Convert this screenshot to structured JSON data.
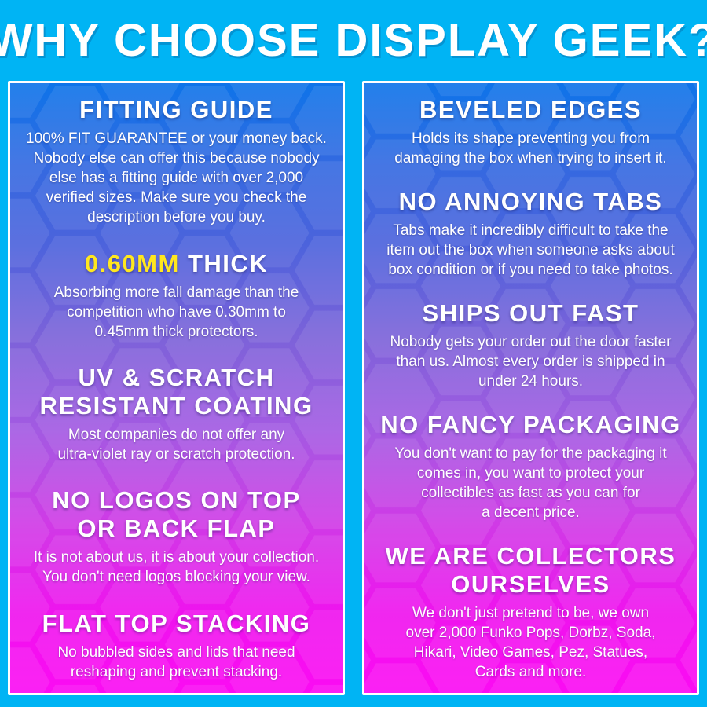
{
  "header": {
    "title": "WHY CHOOSE DISPLAY GEEK?"
  },
  "colors": {
    "frame_cyan": "#00b4f4",
    "accent_yellow": "#ffe71f",
    "panel_border_white": "#ffffff",
    "panel_gradient_top_blue": "#0e74e9",
    "panel_gradient_mid_purple": "#a35ae2",
    "panel_gradient_bottom_magenta": "#fb0bf3",
    "text_white": "#ffffff"
  },
  "columns": {
    "left": {
      "sections": [
        {
          "heading_lines": [
            "FITTING GUIDE"
          ],
          "body": "100% FIT GUARANTEE or your money back.\nNobody else can offer this because nobody\nelse has a fitting guide with over 2,000\nverified sizes. Make sure you check the\ndescription before you buy."
        },
        {
          "heading_lines": [
            "0.60MM THICK"
          ],
          "accent": "0.60MM",
          "body": "Absorbing more fall damage than the\ncompetition who have 0.30mm to\n0.45mm thick protectors."
        },
        {
          "heading_lines": [
            "UV & SCRATCH",
            "RESISTANT COATING"
          ],
          "body": "Most companies do not offer any\nultra-violet ray or scratch protection."
        },
        {
          "heading_lines": [
            "NO LOGOS ON TOP",
            "OR BACK FLAP"
          ],
          "body": "It is not about us, it is about your collection.\nYou don't need logos blocking your view."
        },
        {
          "heading_lines": [
            "FLAT TOP STACKING"
          ],
          "body": "No bubbled sides and lids that need\nreshaping and prevent stacking."
        }
      ]
    },
    "right": {
      "sections": [
        {
          "heading_lines": [
            "BEVELED EDGES"
          ],
          "body": "Holds its shape preventing you from\ndamaging the box when trying to insert it."
        },
        {
          "heading_lines": [
            "NO ANNOYING TABS"
          ],
          "body": "Tabs make it incredibly difficult to take the\nitem out the box when someone asks about\nbox condition or if you need to take photos."
        },
        {
          "heading_lines": [
            "SHIPS OUT FAST"
          ],
          "body": "Nobody gets your order out the door faster\nthan us. Almost every order is shipped in\nunder 24 hours."
        },
        {
          "heading_lines": [
            "NO FANCY PACKAGING"
          ],
          "body": "You don't want to pay for the packaging it\ncomes in, you want to protect your\ncollectibles as fast as you can for\na decent price."
        },
        {
          "heading_lines": [
            "WE ARE COLLECTORS",
            "OURSELVES"
          ],
          "body": "We don't just pretend to be, we own\nover 2,000 Funko Pops, Dorbz, Soda,\nHikari, Video Games, Pez, Statues,\nCards and more."
        }
      ]
    }
  }
}
